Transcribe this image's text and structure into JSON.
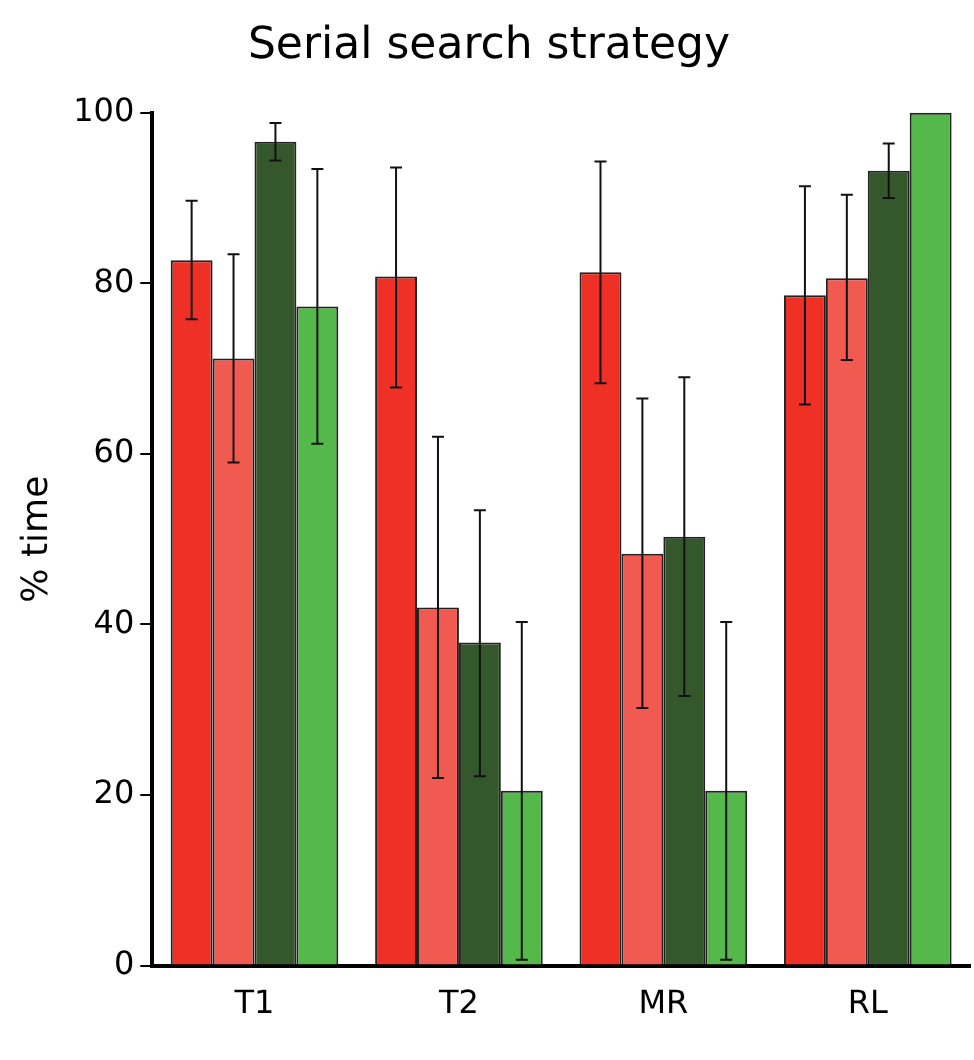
{
  "chart_data": {
    "type": "bar",
    "title": "Serial search strategy",
    "ylabel": "% time",
    "categories": [
      "T1",
      "T2",
      "MR",
      "RL"
    ],
    "ylim": [
      0,
      100
    ],
    "yticks": [
      0,
      20,
      40,
      60,
      80,
      100
    ],
    "grid": false,
    "legend": false,
    "series": [
      {
        "color": "#ee3124",
        "values": [
          82.7,
          80.8,
          81.3,
          78.6
        ],
        "errors": [
          [
            75.8,
            89.7
          ],
          [
            67.8,
            93.6
          ],
          [
            68.3,
            94.3
          ],
          [
            65.8,
            91.4
          ]
        ]
      },
      {
        "color": "#f05a50",
        "values": [
          71.2,
          42,
          48.3,
          80.6
        ],
        "errors": [
          [
            59,
            83.4
          ],
          [
            22,
            62
          ],
          [
            30.2,
            66.5
          ],
          [
            71,
            90.4
          ]
        ]
      },
      {
        "color": "#34582c",
        "values": [
          96.6,
          37.9,
          50.3,
          93.2
        ],
        "errors": [
          [
            94.4,
            98.8
          ],
          [
            22.2,
            53.4
          ],
          [
            31.6,
            69
          ],
          [
            90,
            96.4
          ]
        ]
      },
      {
        "color": "#55b84a",
        "values": [
          77.3,
          20.5,
          20.5,
          100
        ],
        "errors": [
          [
            61.2,
            93.4
          ],
          [
            0.7,
            40.3
          ],
          [
            0.7,
            40.3
          ],
          null
        ]
      }
    ]
  }
}
